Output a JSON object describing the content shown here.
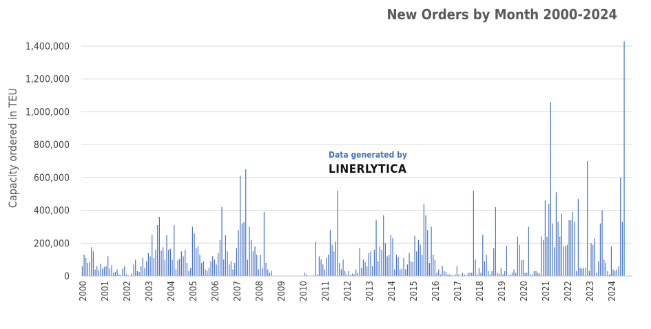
{
  "chart_data": {
    "type": "bar",
    "title": "New Orders by Month 2000-2024",
    "xlabel": "",
    "ylabel": "Capacity ordered in TEU",
    "ylim": [
      0,
      1400000
    ],
    "yticks": [
      0,
      200000,
      400000,
      600000,
      800000,
      1000000,
      1200000,
      1400000
    ],
    "ytick_labels": [
      "0",
      "200,000",
      "400,000",
      "600,000",
      "800,000",
      "1,000,000",
      "1,200,000",
      "1,400,000"
    ],
    "x_tick_labels": [
      "2000",
      "2001",
      "2002",
      "2003",
      "2004",
      "2005",
      "2006",
      "2007",
      "2008",
      "2009",
      "2010",
      "2011",
      "2012",
      "2013",
      "2014",
      "2015",
      "2016",
      "2017",
      "2018",
      "2019",
      "2020",
      "2021",
      "2022",
      "2023",
      "2024"
    ],
    "grid": true,
    "bar_color": "#4472c4",
    "years": [
      {
        "year": "2000",
        "values": [
          60000,
          130000,
          110000,
          80000,
          85000,
          175000,
          150000,
          40000,
          60000,
          35000,
          75000,
          45000
        ]
      },
      {
        "year": "2001",
        "values": [
          55000,
          60000,
          120000,
          45000,
          65000,
          20000,
          25000,
          40000,
          10000,
          5000,
          45000,
          60000
        ]
      },
      {
        "year": "2002",
        "values": [
          10000,
          5000,
          0,
          15000,
          70000,
          100000,
          30000,
          25000,
          60000,
          110000,
          50000,
          90000
        ]
      },
      {
        "year": "2003",
        "values": [
          140000,
          120000,
          250000,
          110000,
          160000,
          310000,
          360000,
          155000,
          175000,
          100000,
          250000,
          160000
        ]
      },
      {
        "year": "2004",
        "values": [
          165000,
          100000,
          310000,
          40000,
          95000,
          105000,
          150000,
          120000,
          160000,
          80000,
          30000,
          50000
        ]
      },
      {
        "year": "2005",
        "values": [
          300000,
          260000,
          170000,
          180000,
          130000,
          80000,
          90000,
          40000,
          30000,
          50000,
          90000,
          120000
        ]
      },
      {
        "year": "2006",
        "values": [
          100000,
          70000,
          140000,
          220000,
          420000,
          100000,
          250000,
          150000,
          70000,
          90000,
          40000,
          80000
        ]
      },
      {
        "year": "2007",
        "values": [
          170000,
          280000,
          610000,
          320000,
          330000,
          650000,
          100000,
          300000,
          220000,
          150000,
          180000,
          130000
        ]
      },
      {
        "year": "2008",
        "values": [
          40000,
          130000,
          50000,
          390000,
          80000,
          40000,
          20000,
          30000,
          0,
          0,
          0,
          0
        ]
      },
      {
        "year": "2009",
        "values": [
          0,
          0,
          0,
          0,
          0,
          0,
          0,
          0,
          0,
          0,
          0,
          0
        ]
      },
      {
        "year": "2010",
        "values": [
          0,
          20000,
          10000,
          0,
          0,
          0,
          5000,
          210000,
          10000,
          120000,
          100000,
          70000
        ]
      },
      {
        "year": "2011",
        "values": [
          40000,
          110000,
          130000,
          280000,
          190000,
          150000,
          210000,
          520000,
          80000,
          40000,
          100000,
          30000
        ]
      },
      {
        "year": "2012",
        "values": [
          10000,
          30000,
          5000,
          15000,
          10000,
          40000,
          20000,
          170000,
          50000,
          100000,
          85000,
          60000
        ]
      },
      {
        "year": "2013",
        "values": [
          140000,
          150000,
          60000,
          160000,
          340000,
          90000,
          180000,
          160000,
          370000,
          200000,
          120000,
          130000
        ]
      },
      {
        "year": "2014",
        "values": [
          250000,
          230000,
          40000,
          130000,
          115000,
          40000,
          45000,
          110000,
          40000,
          70000,
          140000,
          90000
        ]
      },
      {
        "year": "2015",
        "values": [
          85000,
          245000,
          150000,
          220000,
          190000,
          130000,
          440000,
          370000,
          280000,
          80000,
          300000,
          130000
        ]
      },
      {
        "year": "2016",
        "values": [
          100000,
          20000,
          40000,
          10000,
          60000,
          30000,
          25000,
          10000,
          10000,
          5000,
          0,
          10000
        ]
      },
      {
        "year": "2017",
        "values": [
          60000,
          10000,
          0,
          20000,
          10000,
          5000,
          20000,
          20000,
          20000,
          520000,
          100000,
          10000
        ]
      },
      {
        "year": "2018",
        "values": [
          50000,
          20000,
          250000,
          90000,
          130000,
          30000,
          10000,
          30000,
          170000,
          420000,
          20000,
          15000
        ]
      },
      {
        "year": "2019",
        "values": [
          50000,
          10000,
          30000,
          185000,
          5000,
          10000,
          20000,
          40000,
          20000,
          240000,
          190000,
          95000
        ]
      },
      {
        "year": "2020",
        "values": [
          100000,
          20000,
          20000,
          300000,
          10000,
          10000,
          30000,
          30000,
          20000,
          15000,
          240000,
          220000
        ]
      },
      {
        "year": "2021",
        "values": [
          460000,
          240000,
          440000,
          1060000,
          320000,
          175000,
          510000,
          330000,
          240000,
          380000,
          180000,
          180000
        ]
      },
      {
        "year": "2022",
        "values": [
          190000,
          340000,
          340000,
          390000,
          330000,
          30000,
          470000,
          50000,
          45000,
          50000,
          50000,
          700000
        ]
      },
      {
        "year": "2023",
        "values": [
          30000,
          200000,
          190000,
          230000,
          20000,
          90000,
          320000,
          400000,
          100000,
          80000,
          30000,
          10000
        ]
      },
      {
        "year": "2024",
        "values": [
          180000,
          40000,
          30000,
          40000,
          60000,
          600000,
          330000,
          1430000
        ]
      }
    ]
  },
  "watermark": {
    "line1": "Data generated by",
    "line2": "LINERLYTICA"
  }
}
